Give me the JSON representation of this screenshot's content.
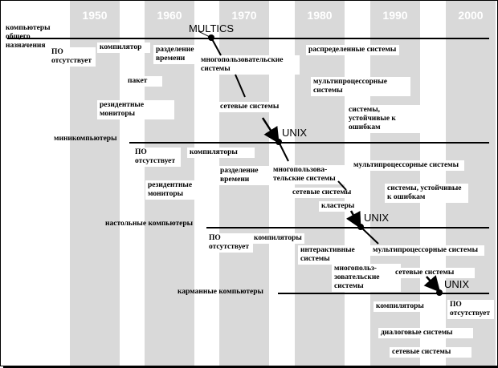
{
  "years": [
    "1950",
    "1960",
    "1970",
    "1980",
    "1990",
    "2000"
  ],
  "rows": [
    {
      "label": "компьютеры общего назначения"
    },
    {
      "label": "миникомпьютеры"
    },
    {
      "label": "настольные компьютеры"
    },
    {
      "label": "карманные компьютеры"
    }
  ],
  "os_labels": [
    "MULTICS",
    "UNIX",
    "UNIX",
    "UNIX"
  ],
  "features": [
    "ПО отсутствует",
    "компилятор",
    "разделение времени",
    "многопользовательские системы",
    "распределенные системы",
    "пакет",
    "мультипроцессорные системы",
    "резидентные мониторы",
    "сетевые системы",
    "системы, устойчивые к ошибкам",
    "ПО отсутствует",
    "компиляторы",
    "разделение времени",
    "многопользова-тельские системы",
    "мультипроцессорные системы",
    "резидентные мониторы",
    "сетевые системы",
    "системы, устойчивые к ошибкам",
    "кластеры",
    "ПО отсутствует",
    "компиляторы",
    "интерактивные системы",
    "мультипроцессорные системы",
    "многопольз-зовательские системы",
    "сетевые системы",
    "компиляторы",
    "ПО отсутствует",
    "диалоговые системы",
    "сетевые системы"
  ]
}
